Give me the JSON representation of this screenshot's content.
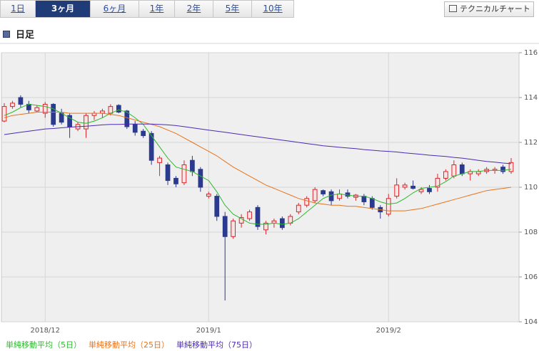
{
  "tabs": [
    "1日",
    "3ヶ月",
    "6ヶ月",
    "1年",
    "2年",
    "5年",
    "10年"
  ],
  "active_tab": 1,
  "button": "テクニカルチャート",
  "section_title": "日足",
  "chart_data": {
    "type": "candlestick",
    "categories": [
      null,
      null,
      null,
      null,
      null,
      "2018/12",
      null,
      null,
      null,
      null,
      null,
      null,
      null,
      null,
      null,
      null,
      null,
      null,
      null,
      null,
      null,
      null,
      null,
      null,
      null,
      "2019/1",
      null,
      null,
      null,
      null,
      null,
      null,
      null,
      null,
      null,
      null,
      null,
      null,
      null,
      null,
      null,
      null,
      null,
      null,
      null,
      null,
      null,
      "2019/2",
      null,
      null,
      null,
      null,
      null,
      null,
      null,
      null,
      null,
      null,
      null,
      null,
      null,
      null,
      null
    ],
    "open": [
      112.95,
      113.6,
      114.0,
      113.7,
      113.4,
      113.3,
      113.7,
      113.3,
      113.2,
      112.6,
      112.6,
      113.2,
      113.3,
      113.3,
      113.65,
      113.4,
      112.8,
      112.5,
      112.4,
      111.1,
      111.0,
      110.4,
      110.2,
      111.2,
      110.8,
      109.6,
      109.6,
      108.7,
      107.8,
      108.4,
      108.6,
      109.1,
      108.1,
      108.4,
      108.6,
      108.4,
      108.9,
      109.2,
      109.4,
      109.85,
      109.8,
      109.5,
      109.75,
      109.55,
      109.6,
      109.5,
      109.1,
      108.8,
      109.6,
      110.0,
      110.05,
      109.8,
      109.95,
      110.0,
      110.4,
      110.5,
      111.0,
      110.6,
      110.6,
      110.7,
      110.75,
      110.9,
      110.7
    ],
    "high": [
      113.75,
      113.85,
      114.1,
      113.85,
      113.65,
      113.8,
      113.75,
      113.5,
      113.3,
      112.9,
      113.3,
      113.4,
      113.5,
      113.7,
      113.7,
      113.45,
      112.95,
      112.6,
      112.5,
      111.4,
      111.1,
      110.5,
      111.2,
      111.4,
      110.9,
      109.8,
      109.7,
      108.9,
      108.6,
      108.8,
      109.0,
      109.2,
      108.5,
      108.6,
      108.7,
      108.8,
      109.3,
      109.6,
      110.0,
      109.9,
      109.9,
      109.9,
      109.9,
      109.7,
      109.7,
      109.6,
      109.2,
      109.7,
      110.4,
      110.2,
      110.3,
      110.0,
      110.1,
      110.6,
      110.8,
      111.2,
      111.1,
      110.8,
      110.8,
      110.9,
      110.9,
      111.0,
      111.3
    ],
    "low": [
      112.9,
      113.5,
      113.55,
      113.3,
      113.35,
      113.1,
      112.7,
      112.8,
      112.2,
      112.5,
      112.2,
      113.0,
      113.1,
      113.2,
      113.3,
      112.6,
      112.3,
      112.2,
      111.0,
      110.5,
      110.1,
      110.0,
      110.1,
      110.5,
      109.8,
      109.5,
      108.5,
      104.95,
      107.7,
      108.2,
      108.5,
      108.1,
      107.9,
      108.2,
      108.1,
      108.3,
      108.8,
      109.1,
      109.3,
      109.6,
      109.2,
      109.4,
      109.5,
      109.4,
      109.2,
      109.0,
      108.6,
      108.7,
      109.5,
      109.9,
      109.9,
      109.7,
      109.7,
      109.8,
      110.3,
      110.4,
      110.5,
      110.3,
      110.5,
      110.6,
      110.6,
      110.6,
      110.6
    ],
    "close": [
      113.6,
      113.75,
      113.7,
      113.45,
      113.55,
      113.7,
      112.8,
      112.9,
      112.7,
      112.8,
      113.2,
      113.3,
      113.4,
      113.6,
      113.35,
      112.7,
      112.45,
      112.3,
      111.2,
      111.3,
      110.3,
      110.15,
      111.0,
      110.7,
      110.0,
      109.7,
      108.7,
      107.8,
      108.5,
      108.65,
      108.9,
      108.25,
      108.4,
      108.5,
      108.2,
      108.7,
      109.2,
      109.5,
      109.9,
      109.7,
      109.4,
      109.7,
      109.6,
      109.65,
      109.35,
      109.1,
      108.9,
      109.5,
      110.1,
      110.1,
      109.95,
      109.9,
      109.8,
      110.4,
      110.7,
      111.0,
      110.6,
      110.7,
      110.7,
      110.8,
      110.8,
      110.7,
      111.1
    ],
    "up_color": "#d8262c",
    "down_color": "#2b3a8f",
    "series": [
      {
        "name": "単純移動平均（5日）",
        "color": "#2fb82f",
        "values": [
          113.2,
          113.35,
          113.55,
          113.7,
          113.65,
          113.6,
          113.5,
          113.3,
          113.1,
          112.9,
          112.85,
          112.95,
          113.1,
          113.3,
          113.45,
          113.35,
          113.1,
          112.8,
          112.3,
          111.8,
          111.3,
          110.9,
          110.8,
          110.7,
          110.5,
          110.3,
          109.8,
          109.2,
          108.8,
          108.6,
          108.4,
          108.35,
          108.35,
          108.4,
          108.35,
          108.4,
          108.6,
          108.9,
          109.2,
          109.5,
          109.65,
          109.7,
          109.65,
          109.6,
          109.6,
          109.5,
          109.35,
          109.25,
          109.3,
          109.5,
          109.75,
          109.95,
          110.0,
          110.05,
          110.25,
          110.5,
          110.6,
          110.7,
          110.7,
          110.75,
          110.75,
          110.75,
          110.8
        ]
      },
      {
        "name": "単純移動平均（25日）",
        "color": "#e8731a",
        "values": [
          113.1,
          113.2,
          113.25,
          113.3,
          113.35,
          113.35,
          113.35,
          113.35,
          113.3,
          113.3,
          113.3,
          113.3,
          113.3,
          113.25,
          113.2,
          113.1,
          113.0,
          112.9,
          112.8,
          112.7,
          112.55,
          112.4,
          112.2,
          112.0,
          111.8,
          111.6,
          111.4,
          111.15,
          110.9,
          110.7,
          110.5,
          110.3,
          110.1,
          109.95,
          109.8,
          109.65,
          109.5,
          109.4,
          109.3,
          109.25,
          109.2,
          109.2,
          109.15,
          109.15,
          109.1,
          109.05,
          109.0,
          108.95,
          108.95,
          108.95,
          109.0,
          109.05,
          109.15,
          109.25,
          109.35,
          109.45,
          109.55,
          109.65,
          109.75,
          109.85,
          109.9,
          109.95,
          110.0
        ]
      },
      {
        "name": "単純移動平均（75日）",
        "color": "#4b2bb0",
        "values": [
          112.35,
          112.4,
          112.45,
          112.5,
          112.55,
          112.6,
          112.62,
          112.65,
          112.68,
          112.7,
          112.72,
          112.75,
          112.78,
          112.8,
          112.8,
          112.82,
          112.82,
          112.82,
          112.82,
          112.8,
          112.78,
          112.75,
          112.7,
          112.65,
          112.6,
          112.55,
          112.5,
          112.45,
          112.4,
          112.35,
          112.3,
          112.25,
          112.2,
          112.15,
          112.1,
          112.05,
          112.0,
          111.95,
          111.9,
          111.85,
          111.82,
          111.78,
          111.75,
          111.72,
          111.68,
          111.65,
          111.62,
          111.6,
          111.57,
          111.53,
          111.5,
          111.47,
          111.43,
          111.4,
          111.37,
          111.33,
          111.3,
          111.25,
          111.2,
          111.15,
          111.12,
          111.08,
          111.05
        ]
      }
    ],
    "ylim": [
      104,
      116
    ],
    "yticks": [
      104,
      106,
      108,
      110,
      112,
      114,
      116
    ],
    "grid": true
  }
}
